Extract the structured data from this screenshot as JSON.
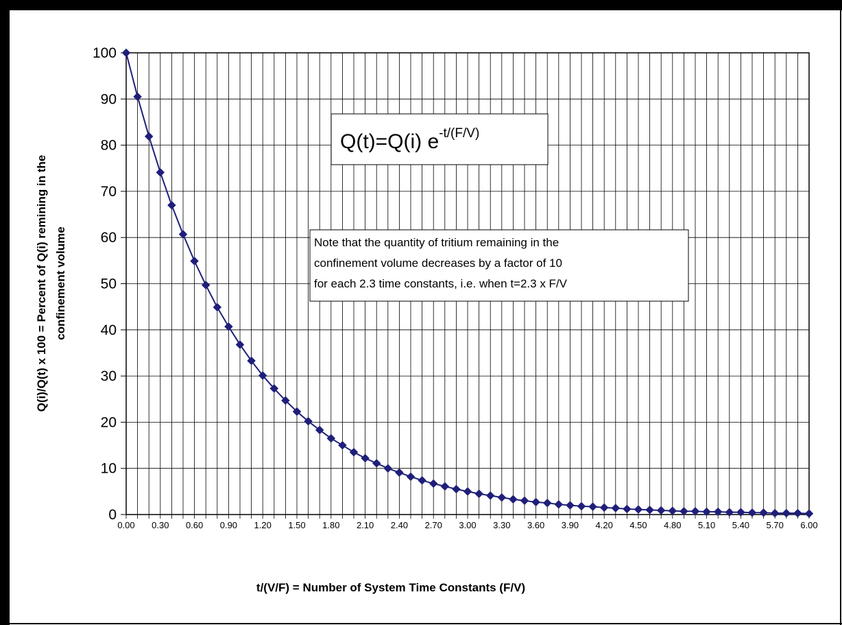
{
  "chart_data": {
    "type": "line",
    "xlabel": "t/(V/F) = Number of System Time Constants (F/V)",
    "ylabel_lines": [
      "Q(i)/Q(t) x 100 = Percent of Q(i) remining in the",
      "confinement volume"
    ],
    "ylim": [
      0,
      100
    ],
    "yticks": [
      "0",
      "10",
      "20",
      "30",
      "40",
      "50",
      "60",
      "70",
      "80",
      "90",
      "100"
    ],
    "xlim": [
      0,
      6
    ],
    "xtick_labels": [
      "0.00",
      "0.30",
      "0.60",
      "0.90",
      "1.20",
      "1.50",
      "1.80",
      "2.10",
      "2.40",
      "2.70",
      "3.00",
      "3.30",
      "3.60",
      "3.90",
      "4.20",
      "4.50",
      "4.80",
      "5.10",
      "5.40",
      "5.70",
      "6.00"
    ],
    "grid": "vertical lines every 0.1, horizontal lines every 10",
    "marker": "diamond",
    "series_color": "#1f1f7a",
    "x": [
      0.0,
      0.1,
      0.2,
      0.3,
      0.4,
      0.5,
      0.6,
      0.7,
      0.8,
      0.9,
      1.0,
      1.1,
      1.2,
      1.3,
      1.4,
      1.5,
      1.6,
      1.7,
      1.8,
      1.9,
      2.0,
      2.1,
      2.2,
      2.3,
      2.4,
      2.5,
      2.6,
      2.7,
      2.8,
      2.9,
      3.0,
      3.1,
      3.2,
      3.3,
      3.4,
      3.5,
      3.6,
      3.7,
      3.8,
      3.9,
      4.0,
      4.1,
      4.2,
      4.3,
      4.4,
      4.5,
      4.6,
      4.7,
      4.8,
      4.9,
      5.0,
      5.1,
      5.2,
      5.3,
      5.4,
      5.5,
      5.6,
      5.7,
      5.8,
      5.9,
      6.0
    ],
    "values": [
      100.0,
      90.5,
      81.9,
      74.1,
      67.0,
      60.7,
      54.9,
      49.7,
      44.9,
      40.7,
      36.8,
      33.3,
      30.1,
      27.3,
      24.7,
      22.3,
      20.2,
      18.3,
      16.5,
      15.0,
      13.5,
      12.2,
      11.1,
      10.0,
      9.1,
      8.2,
      7.4,
      6.7,
      6.1,
      5.5,
      5.0,
      4.5,
      4.1,
      3.7,
      3.3,
      3.0,
      2.7,
      2.5,
      2.2,
      2.0,
      1.8,
      1.7,
      1.5,
      1.4,
      1.2,
      1.1,
      1.0,
      0.9,
      0.8,
      0.7,
      0.7,
      0.6,
      0.6,
      0.5,
      0.5,
      0.4,
      0.4,
      0.3,
      0.3,
      0.3,
      0.2
    ],
    "annotations": {
      "formula_base": "Q(t)=Q(i) e",
      "formula_exponent": "-t/(F/V)",
      "note_lines": [
        "Note that the quantity of tritium remaining in the",
        "confinement volume decreases by a factor of 10",
        "for each 2.3 time constants, i.e.  when t=2.3 x F/V"
      ]
    }
  }
}
